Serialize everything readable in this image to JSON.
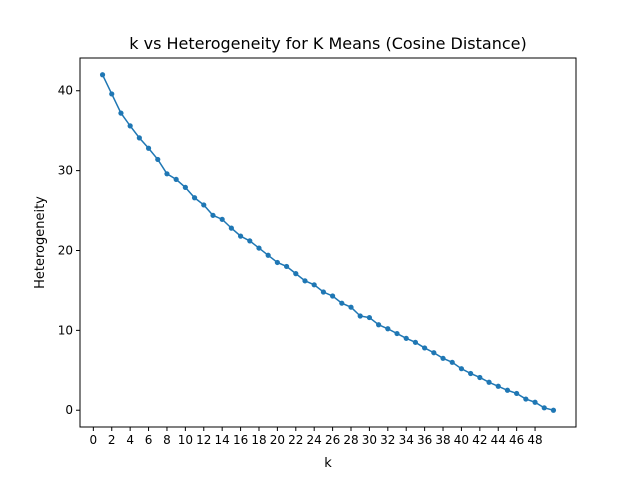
{
  "chart_data": {
    "type": "line",
    "title": "k vs Heterogeneity for K Means (Cosine Distance)",
    "xlabel": "k",
    "ylabel": "Heterogeneity",
    "xlim": [
      -1.45,
      52.45
    ],
    "ylim": [
      -2.1,
      44.1
    ],
    "xticks": [
      0,
      2,
      4,
      6,
      8,
      10,
      12,
      14,
      16,
      18,
      20,
      22,
      24,
      26,
      28,
      30,
      32,
      34,
      36,
      38,
      40,
      42,
      44,
      46,
      48
    ],
    "yticks": [
      0,
      10,
      20,
      30,
      40
    ],
    "grid": false,
    "color": "#1f77b4",
    "marker": "circle",
    "series": [
      {
        "x": [
          1,
          2,
          3,
          4,
          5,
          6,
          7,
          8,
          9,
          10,
          11,
          12,
          13,
          14,
          15,
          16,
          17,
          18,
          19,
          20,
          21,
          22,
          23,
          24,
          25,
          26,
          27,
          28,
          29,
          30,
          31,
          32,
          33,
          34,
          35,
          36,
          37,
          38,
          39,
          40,
          41,
          42,
          43,
          44,
          45,
          46,
          47,
          48,
          49,
          50
        ],
        "values": [
          42.0,
          39.6,
          37.2,
          35.6,
          34.1,
          32.8,
          31.4,
          29.6,
          28.9,
          27.9,
          26.6,
          25.7,
          24.4,
          23.9,
          22.8,
          21.8,
          21.2,
          20.3,
          19.4,
          18.5,
          18.0,
          17.1,
          16.2,
          15.7,
          14.8,
          14.3,
          13.4,
          12.9,
          11.8,
          11.6,
          10.7,
          10.2,
          9.6,
          9.0,
          8.5,
          7.8,
          7.2,
          6.5,
          6.0,
          5.2,
          4.6,
          4.1,
          3.5,
          3.0,
          2.5,
          2.1,
          1.4,
          1.0,
          0.3,
          0.0
        ]
      }
    ]
  }
}
